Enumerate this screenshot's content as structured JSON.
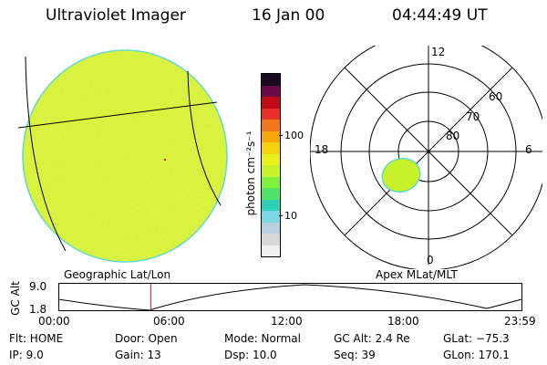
{
  "header": {
    "title": "Ultraviolet Imager",
    "date": "16 Jan 00",
    "time": "04:44:49 UT"
  },
  "colorbar": {
    "unit_label": "photon cm⁻²s⁻¹",
    "ticks": [
      "100",
      "10"
    ],
    "colors": [
      "#f0f0f0",
      "#d8d8d8",
      "#b8d0e0",
      "#7ad7e4",
      "#2bd2b8",
      "#4ee46a",
      "#7ef23a",
      "#c8f22a",
      "#eaf01e",
      "#f5d20f",
      "#f7a80a",
      "#f07818",
      "#e83028",
      "#c20a16",
      "#6a0a46",
      "#1a0a22"
    ]
  },
  "geo_panel": {
    "caption": "Geographic Lat/Lon",
    "fill_color": "#d6f23a",
    "edge_color": "#5fd9cc"
  },
  "polar_panel": {
    "caption": "Apex MLat/MLT",
    "mlt_labels": {
      "top": "12",
      "left": "18",
      "right": "6",
      "bottom": "0"
    },
    "lat_labels": [
      "60",
      "70",
      "80"
    ],
    "blob_color": "#c8f22a"
  },
  "timeline": {
    "ylabel": "GC Alt",
    "y_ticks": [
      "9.0",
      "1.8"
    ],
    "x_ticks": [
      "00:00",
      "06:00",
      "12:00",
      "18:00",
      "23:59"
    ],
    "current_fraction": 0.198,
    "marker_color": "#c02020"
  },
  "info": {
    "flt": "Flt: HOME",
    "ip": "IP:  9.0",
    "door": "Door: Open",
    "gain": "Gain: 13",
    "mode": "Mode: Normal",
    "dsp": "Dsp:   10.0",
    "gcalt": "GC Alt: 2.4 Re",
    "seq": "Seq: 39",
    "glat": "GLat: −75.3",
    "glon": "GLon: 170.1"
  }
}
